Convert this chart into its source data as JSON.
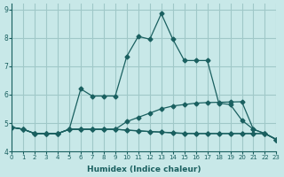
{
  "xlabel": "Humidex (Indice chaleur)",
  "ylabel": "",
  "background_color": "#c8e8e8",
  "grid_color": "#a0c8c8",
  "line_color": "#1a6060",
  "xlim": [
    0,
    23
  ],
  "ylim": [
    4.0,
    9.2
  ],
  "yticks": [
    4,
    5,
    6,
    7,
    8,
    9
  ],
  "xticks": [
    0,
    1,
    2,
    3,
    4,
    5,
    6,
    7,
    8,
    9,
    10,
    11,
    12,
    13,
    14,
    15,
    16,
    17,
    18,
    19,
    20,
    21,
    22,
    23
  ],
  "series": [
    [
      4.85,
      4.78,
      4.63,
      4.63,
      4.63,
      4.78,
      6.2,
      5.95,
      5.95,
      5.95,
      7.35,
      8.05,
      7.95,
      8.85,
      7.95,
      7.2,
      7.2,
      7.2,
      5.7,
      5.65,
      5.1,
      4.78,
      4.63,
      4.42
    ],
    [
      4.85,
      4.78,
      4.63,
      4.63,
      4.63,
      4.78,
      4.78,
      4.78,
      4.78,
      4.78,
      5.05,
      5.2,
      5.35,
      5.5,
      5.6,
      5.65,
      5.7,
      5.72,
      5.73,
      5.74,
      5.75,
      4.78,
      4.63,
      4.42
    ],
    [
      4.85,
      4.78,
      4.63,
      4.63,
      4.63,
      4.78,
      4.78,
      4.78,
      4.78,
      4.78,
      4.75,
      4.72,
      4.7,
      4.68,
      4.65,
      4.63,
      4.63,
      4.63,
      4.63,
      4.63,
      4.63,
      4.63,
      4.63,
      4.42
    ],
    [
      4.85,
      4.78,
      4.63,
      4.63,
      4.63,
      4.78,
      4.78,
      4.78,
      4.78,
      4.78,
      4.75,
      4.73,
      4.7,
      4.68,
      4.66,
      4.64,
      4.63,
      4.63,
      4.63,
      4.63,
      4.63,
      4.63,
      4.63,
      4.42
    ]
  ]
}
